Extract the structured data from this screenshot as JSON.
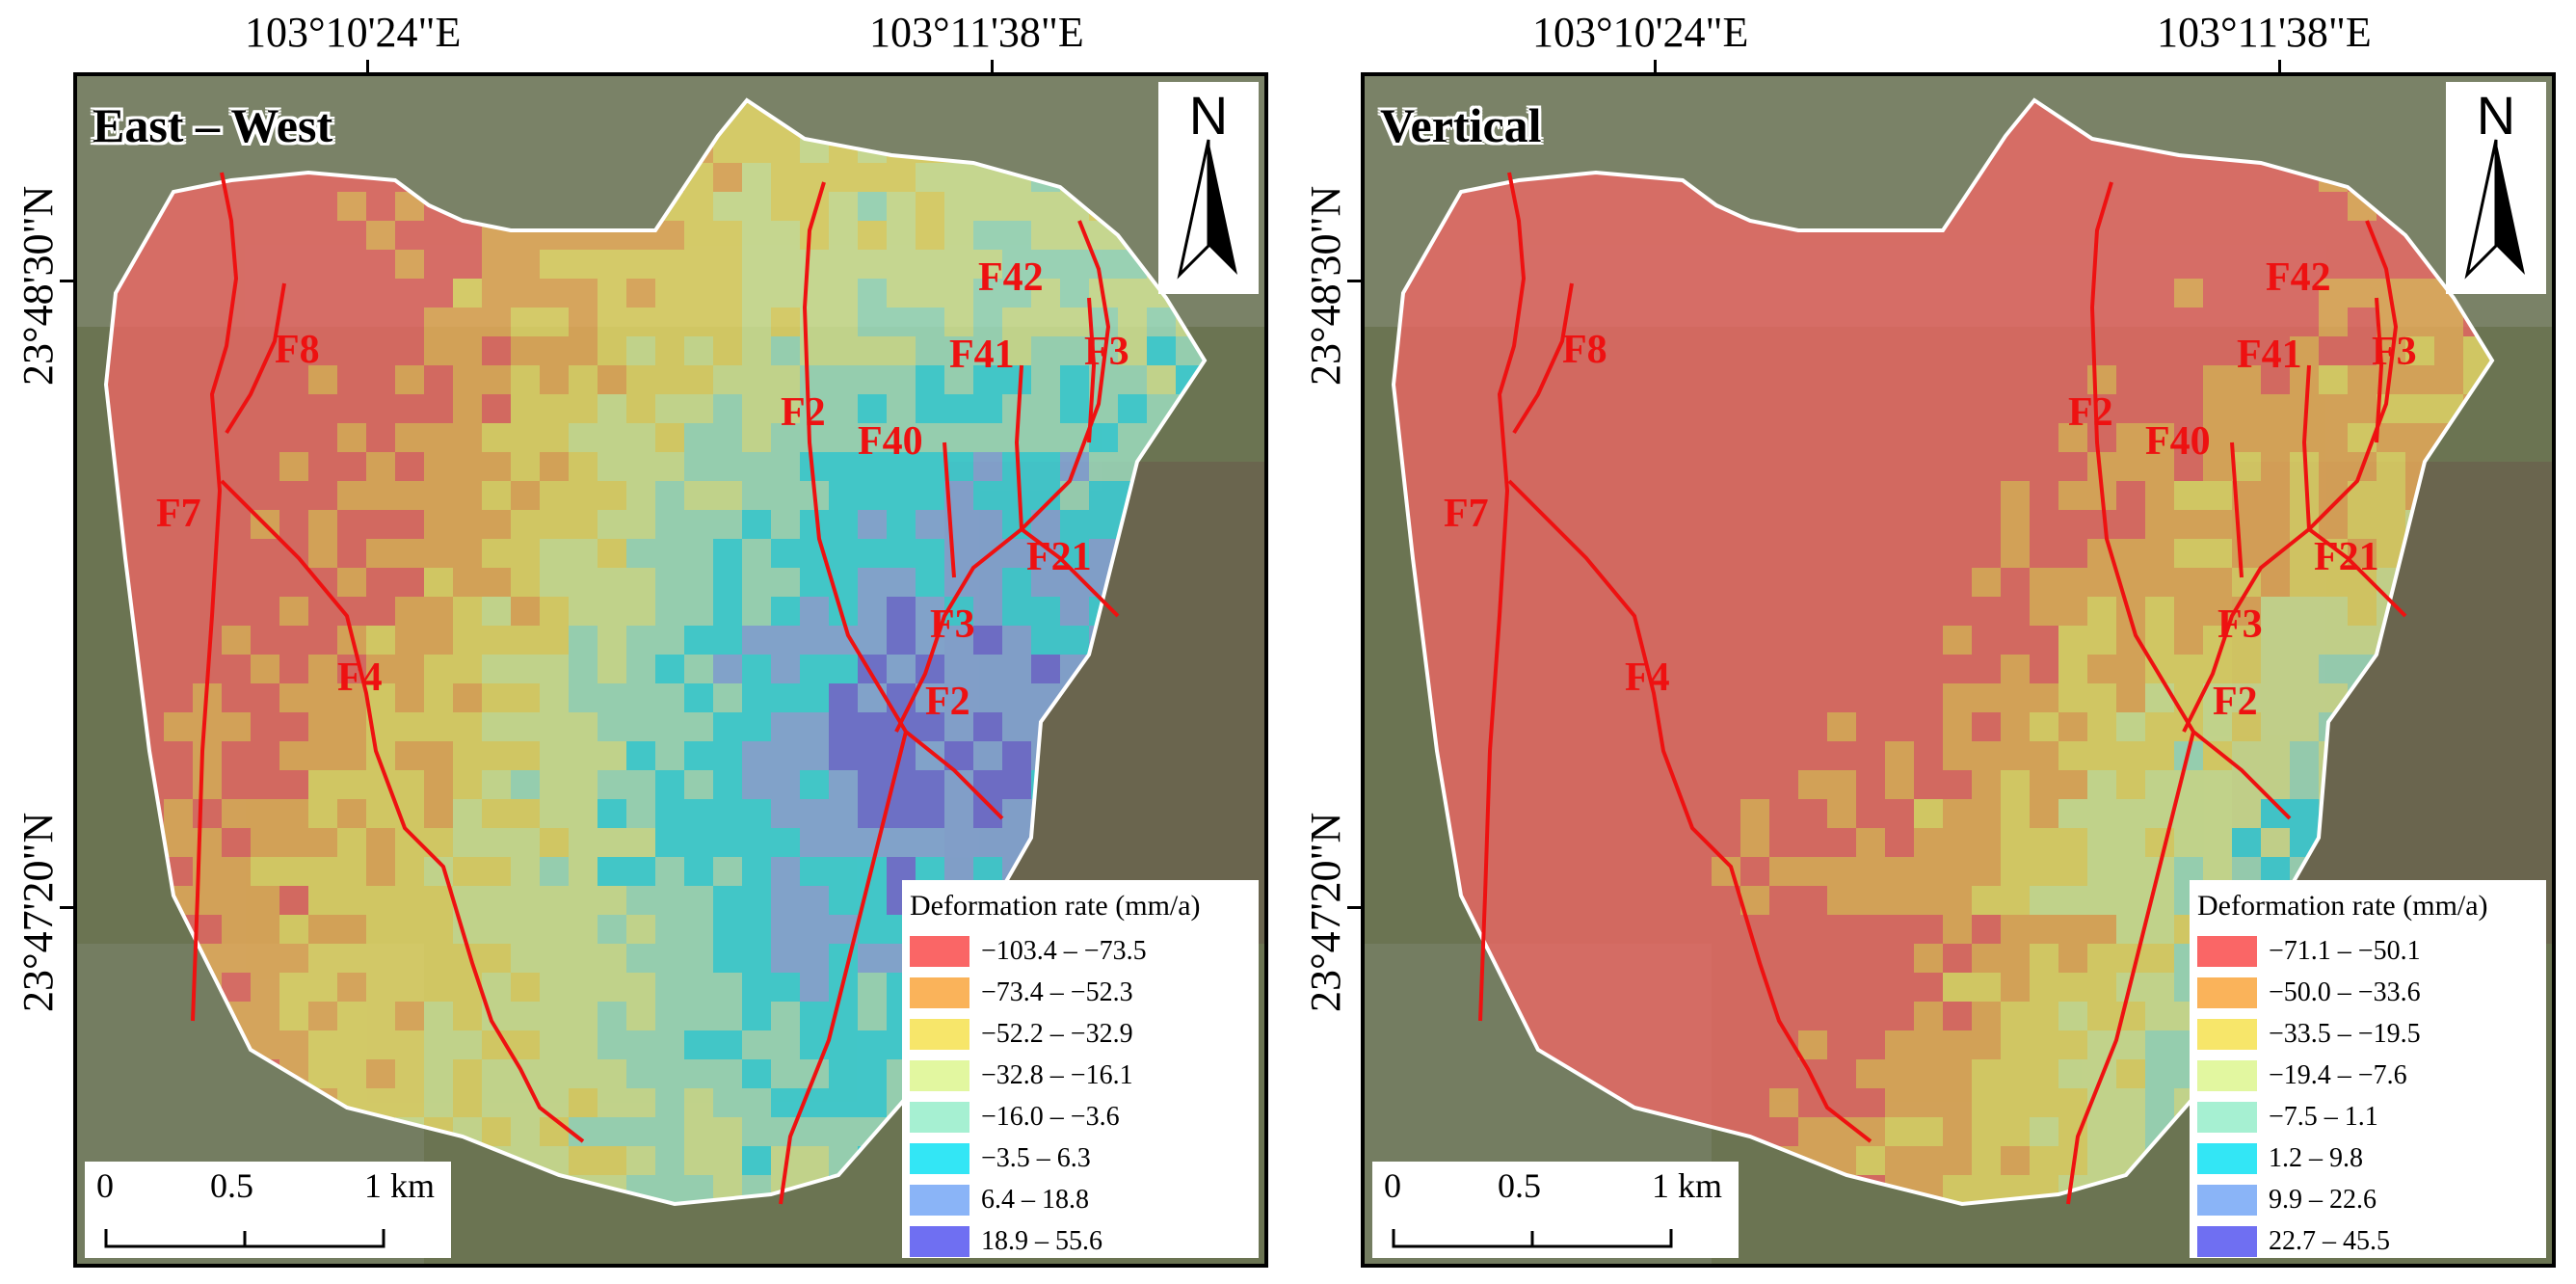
{
  "coordinates": {
    "lon1": "103°10'24\"E",
    "lon2": "103°11'38\"E",
    "lat1": "23°48'30\"N",
    "lat2": "23°47'20\"N"
  },
  "north_arrow": "N",
  "scale_bar": {
    "labels": [
      "0",
      "0.5",
      "1 km"
    ]
  },
  "legend_title": "Deformation rate (mm/a)",
  "palette": [
    "#fa6666",
    "#fab35a",
    "#f7e66a",
    "#e2f7a0",
    "#a6f0d2",
    "#33e6f5",
    "#8ab4f7",
    "#6f6ff2"
  ],
  "panels": [
    {
      "title": "East – West",
      "legend": [
        "−103.4 – −73.5",
        "−73.4 – −52.3",
        "−52.2 – −32.9",
        "−32.8 – −16.1",
        "−16.0 – −3.6",
        "−3.5 – 6.3",
        "6.4 – 18.8",
        "18.9 – 55.6"
      ]
    },
    {
      "title": "Vertical",
      "legend": [
        "−71.1 – −50.1",
        "−50.0 – −33.6",
        "−33.5 – −19.5",
        "−19.4 – −7.6",
        "−7.5 – 1.1",
        "1.2 – 9.8",
        "9.9 – 22.6",
        "22.7 – 45.5"
      ]
    }
  ],
  "faults": [
    "F8",
    "F7",
    "F4",
    "F2",
    "F40",
    "F41",
    "F42",
    "F3",
    "F21",
    "F3",
    "F2"
  ]
}
